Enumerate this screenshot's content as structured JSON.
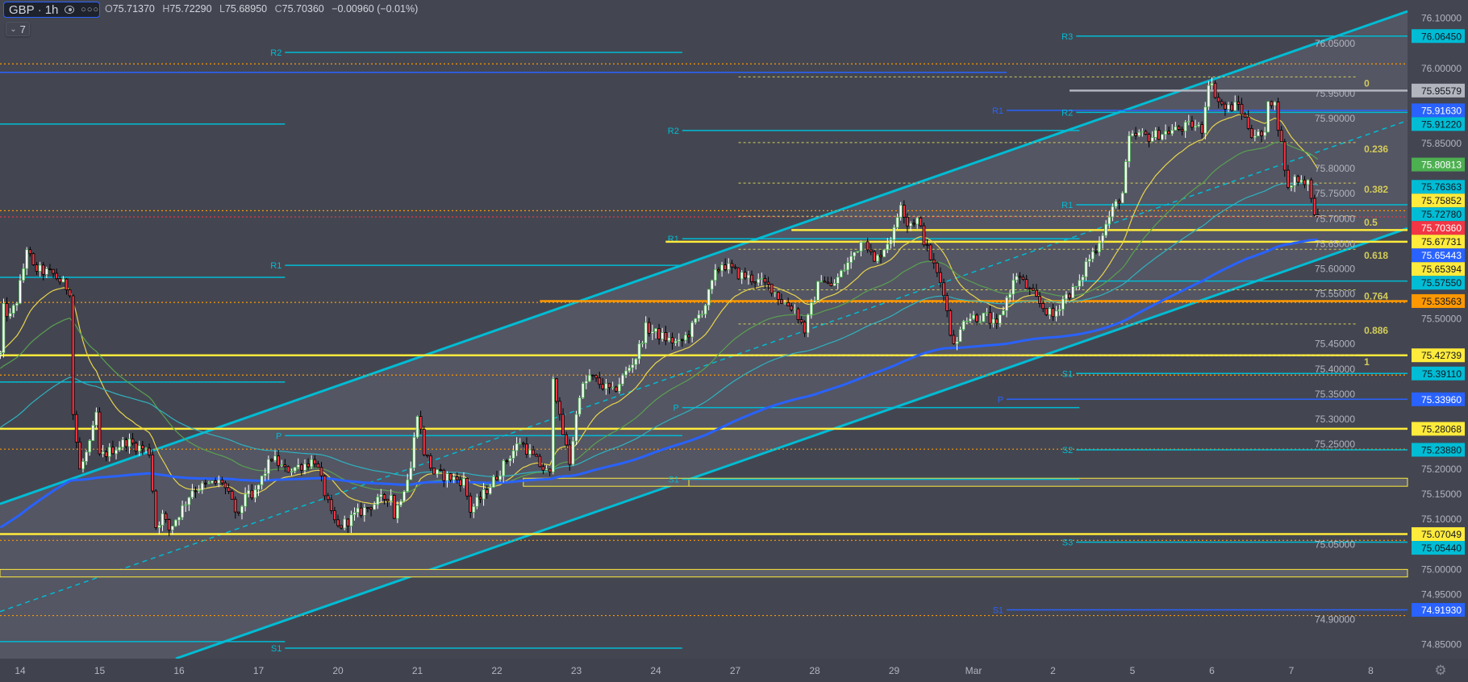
{
  "legend": {
    "symbol": "GBP",
    "separator": "·",
    "interval": "1h",
    "eye_icon": "eye-icon",
    "more_icon": "more-dots-icon",
    "ohlc": [
      {
        "key": "O",
        "value": "75.71370"
      },
      {
        "key": "H",
        "value": "75.72290"
      },
      {
        "key": "L",
        "value": "75.68950"
      },
      {
        "key": "C",
        "value": "75.70360"
      }
    ],
    "change": "−0.00960 (−0.01%)",
    "indicators_count": "7",
    "indicators_icon": "chevron-down-icon"
  },
  "settings_icon": "gear-icon",
  "colors": {
    "background": "#434651",
    "channel_fill": "#545663",
    "up_body": "#ffffff",
    "up_border": "#4caf50",
    "down_body": "#f23645",
    "down_border": "#000000",
    "cyan": "#00bcd4",
    "blue": "#2962ff",
    "yellow": "#ffeb3b",
    "orange": "#ff9800",
    "red": "#f23645",
    "grey": "#b2b5be",
    "fib": "#d4cc5a",
    "ma_fast": "#e8d44d",
    "ma_mid": "#5aa050",
    "ma_slow": "#2fb2c0",
    "ma_long": "#2962ff"
  },
  "chart_data": {
    "type": "candlestick",
    "symbol": "GBP",
    "interval": "1h",
    "x_ticks": [
      "14",
      "15",
      "16",
      "17",
      "20",
      "21",
      "22",
      "23",
      "24",
      "27",
      "28",
      "29",
      "Mar",
      "2",
      "5",
      "6",
      "7",
      "8"
    ],
    "y_ticks": [
      "76.10000",
      "76.05000",
      "76.00000",
      "75.95000",
      "75.90000",
      "75.85000",
      "75.80000",
      "75.75000",
      "75.70000",
      "75.65000",
      "75.60000",
      "75.55000",
      "75.50000",
      "75.45000",
      "75.40000",
      "75.35000",
      "75.30000",
      "75.25000",
      "75.20000",
      "75.15000",
      "75.10000",
      "75.05000",
      "75.00000",
      "74.95000",
      "74.90000",
      "74.85000"
    ],
    "ylim": [
      74.822,
      76.1365
    ],
    "grid": false,
    "last_price": 75.7036,
    "price_path": [
      [
        "13 18:00",
        75.429
      ],
      [
        "13 19:00",
        75.52
      ],
      [
        "13 21:00",
        75.504
      ],
      [
        "13 23:00",
        75.537
      ],
      [
        "14 01:00",
        75.601
      ],
      [
        "14 02:00",
        75.643
      ],
      [
        "14 04:00",
        75.601
      ],
      [
        "14 10:00",
        75.589
      ],
      [
        "14 15:00",
        75.557
      ],
      [
        "14 16:00",
        75.311
      ],
      [
        "14 18:00",
        75.198
      ],
      [
        "14 21:00",
        75.247
      ],
      [
        "14 23:00",
        75.311
      ],
      [
        "15 00:00",
        75.224
      ],
      [
        "15 08:00",
        75.256
      ],
      [
        "15 15:00",
        75.235
      ],
      [
        "15 17:00",
        75.086
      ],
      [
        "15 19:00",
        75.107
      ],
      [
        "15 21:00",
        75.079
      ],
      [
        "16 01:00",
        75.123
      ],
      [
        "16 04:00",
        75.16
      ],
      [
        "16 13:00",
        75.176
      ],
      [
        "16 18:00",
        75.102
      ],
      [
        "16 20:00",
        75.155
      ],
      [
        "16 22:00",
        75.139
      ],
      [
        "17 04:00",
        75.224
      ],
      [
        "17 08:00",
        75.198
      ],
      [
        "17 13:00",
        75.208
      ],
      [
        "17 17:00",
        75.219
      ],
      [
        "17 19:00",
        75.176
      ],
      [
        "17 22:00",
        75.107
      ],
      [
        "20 00:00",
        75.083
      ],
      [
        "20 06:00",
        75.112
      ],
      [
        "20 10:00",
        75.128
      ],
      [
        "20 16:00",
        75.15
      ],
      [
        "20 17:00",
        75.107
      ],
      [
        "20 22:00",
        75.203
      ],
      [
        "21 00:00",
        75.316
      ],
      [
        "21 02:00",
        75.235
      ],
      [
        "21 05:00",
        75.192
      ],
      [
        "21 14:00",
        75.176
      ],
      [
        "21 16:00",
        75.118
      ],
      [
        "21 20:00",
        75.15
      ],
      [
        "22 00:00",
        75.187
      ],
      [
        "22 03:00",
        75.219
      ],
      [
        "22 07:00",
        75.256
      ],
      [
        "22 13:00",
        75.208
      ],
      [
        "22 16:00",
        75.187
      ],
      [
        "22 17:00",
        75.391
      ],
      [
        "22 19:00",
        75.299
      ],
      [
        "22 22:00",
        75.214
      ],
      [
        "23 01:00",
        75.353
      ],
      [
        "23 04:00",
        75.385
      ],
      [
        "23 11:00",
        75.353
      ],
      [
        "23 18:00",
        75.424
      ],
      [
        "23 21:00",
        75.482
      ],
      [
        "24 03:00",
        75.461
      ],
      [
        "24 07:00",
        75.45
      ],
      [
        "24 10:00",
        75.472
      ],
      [
        "24 15:00",
        75.53
      ],
      [
        "24 18:00",
        75.589
      ],
      [
        "24 20:00",
        75.611
      ],
      [
        "27 01:00",
        75.589
      ],
      [
        "27 06:00",
        75.578
      ],
      [
        "27 11:00",
        75.562
      ],
      [
        "27 14:00",
        75.536
      ],
      [
        "27 18:00",
        75.52
      ],
      [
        "27 21:00",
        75.477
      ],
      [
        "28 00:00",
        75.546
      ],
      [
        "28 02:00",
        75.585
      ],
      [
        "28 05:00",
        75.562
      ],
      [
        "28 10:00",
        75.611
      ],
      [
        "28 15:00",
        75.665
      ],
      [
        "28 18:00",
        75.611
      ],
      [
        "29 00:00",
        75.675
      ],
      [
        "29 02:00",
        75.735
      ],
      [
        "29 04:00",
        75.691
      ],
      [
        "29 07:00",
        75.698
      ],
      [
        "29 10:00",
        75.638
      ],
      [
        "29 15:00",
        75.557
      ],
      [
        "29 17:00",
        75.472
      ],
      [
        "29 19:00",
        75.449
      ],
      [
        "29 21:00",
        75.504
      ],
      [
        "Mar 04:00",
        75.504
      ],
      [
        "Mar 07:00",
        75.482
      ],
      [
        "Mar 10:00",
        75.541
      ],
      [
        "Mar 13:00",
        75.589
      ],
      [
        "Mar 20:00",
        75.53
      ],
      [
        "2 00:00",
        75.504
      ],
      [
        "2 03:00",
        75.541
      ],
      [
        "2 08:00",
        75.568
      ],
      [
        "2 10:00",
        75.611
      ],
      [
        "2 13:00",
        75.643
      ],
      [
        "2 18:00",
        75.718
      ],
      [
        "2 21:00",
        75.751
      ],
      [
        "2 23:00",
        75.858
      ],
      [
        "5 02:00",
        75.868
      ],
      [
        "5 05:00",
        75.863
      ],
      [
        "5 09:00",
        75.871
      ],
      [
        "5 14:00",
        75.879
      ],
      [
        "5 18:00",
        75.887
      ],
      [
        "5 21:00",
        75.879
      ],
      [
        "5 23:00",
        75.976
      ],
      [
        "6 01:00",
        75.951
      ],
      [
        "6 02:00",
        75.935
      ],
      [
        "6 04:00",
        75.919
      ],
      [
        "6 08:00",
        75.927
      ],
      [
        "6 12:00",
        75.871
      ],
      [
        "6 16:00",
        75.863
      ],
      [
        "6 17:00",
        75.943
      ],
      [
        "6 19:00",
        75.927
      ],
      [
        "6 21:00",
        75.847
      ],
      [
        "6 23:00",
        75.758
      ],
      [
        "7 01:00",
        75.782
      ],
      [
        "7 05:00",
        75.774
      ],
      [
        "7 06:00",
        75.734
      ],
      [
        "7 08:00",
        75.7036
      ]
    ],
    "channel": {
      "upper": [
        [
          "13 18:00",
          75.131
        ],
        [
          "8 12:00",
          76.116
        ]
      ],
      "middle": [
        [
          "13 18:00",
          74.916
        ],
        [
          "8 12:00",
          75.898
        ]
      ],
      "lower": [
        [
          "15 23:00",
          74.822
        ],
        [
          "8 12:00",
          75.683
        ]
      ]
    },
    "fibonacci": {
      "from": "27 01:00",
      "to": "7 20:00",
      "levels": [
        {
          "label": "0",
          "price": 75.983
        },
        {
          "label": "0.236",
          "price": 75.852
        },
        {
          "label": "0.382",
          "price": 75.771
        },
        {
          "label": "0.5",
          "price": 75.705
        },
        {
          "label": "0.618",
          "price": 75.639
        },
        {
          "label": "0.764",
          "price": 75.558
        },
        {
          "label": "0.886",
          "price": 75.49
        },
        {
          "label": "1",
          "price": 75.427
        }
      ]
    },
    "levels": [
      {
        "price": 76.0645,
        "color": "cyan",
        "style": "solid",
        "from": "2 07:00",
        "to": "right",
        "label": "R3"
      },
      {
        "price": 76.009,
        "color": "orange",
        "style": "dotted",
        "from": "left",
        "to": "right",
        "label": ""
      },
      {
        "price": 75.992,
        "color": "blue",
        "style": "solid",
        "from": "left",
        "to": "Mar 10:00",
        "label": ""
      },
      {
        "price": 76.032,
        "color": "cyan",
        "style": "solid",
        "from": "17 08:00",
        "to": "24 08:00",
        "label": "R2"
      },
      {
        "price": 75.889,
        "color": "cyan",
        "style": "solid",
        "from": "left",
        "to": "17 08:00",
        "label": ""
      },
      {
        "price": 75.95579,
        "color": "grey",
        "style": "thick",
        "from": "2 05:00",
        "to": "right",
        "label": ""
      },
      {
        "price": 75.9163,
        "color": "blue",
        "style": "solid",
        "from": "Mar 10:00",
        "to": "right",
        "label": "R1"
      },
      {
        "price": 75.9122,
        "color": "cyan",
        "style": "solid",
        "from": "2 07:00",
        "to": "right",
        "label": "R2"
      },
      {
        "price": 75.876,
        "color": "cyan",
        "style": "solid",
        "from": "24 08:00",
        "to": "2 08:00",
        "label": "R2"
      },
      {
        "price": 75.7278,
        "color": "cyan",
        "style": "solid",
        "from": "2 07:00",
        "to": "right",
        "label": "R1"
      },
      {
        "price": 75.716,
        "color": "orange",
        "style": "dotted",
        "from": "left",
        "to": "right",
        "label": ""
      },
      {
        "price": 75.7036,
        "color": "red",
        "style": "dotted",
        "from": "left",
        "to": "right",
        "label": ""
      },
      {
        "price": 75.67731,
        "color": "yellow",
        "style": "thick",
        "from": "27 17:00",
        "to": "right",
        "label": ""
      },
      {
        "price": 75.66,
        "color": "cyan",
        "style": "solid",
        "from": "24 08:00",
        "to": "2 08:00",
        "label": "R1"
      },
      {
        "price": 75.65394,
        "color": "yellow",
        "style": "thick",
        "from": "24 03:00",
        "to": "right",
        "label": ""
      },
      {
        "price": 75.607,
        "color": "cyan",
        "style": "solid",
        "from": "17 08:00",
        "to": "24 08:00",
        "label": "R1"
      },
      {
        "price": 75.583,
        "color": "cyan",
        "style": "solid",
        "from": "left",
        "to": "17 08:00",
        "label": ""
      },
      {
        "price": 75.5755,
        "color": "cyan",
        "style": "solid",
        "from": "2 08:00",
        "to": "right",
        "label": ""
      },
      {
        "price": 75.53563,
        "color": "orange",
        "style": "thick",
        "from": "22 13:00",
        "to": "right",
        "label": ""
      },
      {
        "price": 75.533,
        "color": "orange",
        "style": "dotted",
        "from": "left",
        "to": "right",
        "label": ""
      },
      {
        "price": 75.42739,
        "color": "yellow",
        "style": "thick",
        "from": "left",
        "to": "right",
        "label": ""
      },
      {
        "price": 75.374,
        "color": "cyan",
        "style": "solid",
        "from": "left",
        "to": "17 08:00",
        "label": ""
      },
      {
        "price": 75.388,
        "color": "orange",
        "style": "dotted",
        "from": "left",
        "to": "right",
        "label": ""
      },
      {
        "price": 75.3911,
        "color": "cyan",
        "style": "solid",
        "from": "2 07:00",
        "to": "right",
        "label": "S1"
      },
      {
        "price": 75.3396,
        "color": "blue",
        "style": "solid",
        "from": "Mar 10:00",
        "to": "right",
        "label": "P"
      },
      {
        "price": 75.323,
        "color": "cyan",
        "style": "solid",
        "from": "24 08:00",
        "to": "2 08:00",
        "label": "P"
      },
      {
        "price": 75.28068,
        "color": "yellow",
        "style": "thick",
        "from": "left",
        "to": "right",
        "label": ""
      },
      {
        "price": 75.267,
        "color": "cyan",
        "style": "solid",
        "from": "17 08:00",
        "to": "24 08:00",
        "label": "P"
      },
      {
        "price": 75.24,
        "color": "orange",
        "style": "dotted",
        "from": "left",
        "to": "right",
        "label": ""
      },
      {
        "price": 75.2388,
        "color": "cyan",
        "style": "solid",
        "from": "2 07:00",
        "to": "right",
        "label": "S2"
      },
      {
        "price": 75.18,
        "color": "cyan",
        "style": "solid",
        "from": "24 08:00",
        "to": "2 08:00",
        "label": "S1"
      },
      {
        "price": 75.07049,
        "color": "yellow",
        "style": "thick",
        "from": "left",
        "to": "right",
        "label": ""
      },
      {
        "price": 75.058,
        "color": "orange",
        "style": "dotted",
        "from": "left",
        "to": "right",
        "label": ""
      },
      {
        "price": 75.0544,
        "color": "cyan",
        "style": "solid",
        "from": "2 07:00",
        "to": "right",
        "label": "S3"
      },
      {
        "price": 74.9193,
        "color": "blue",
        "style": "solid",
        "from": "Mar 10:00",
        "to": "right",
        "label": "S1"
      },
      {
        "price": 74.908,
        "color": "orange",
        "style": "dotted",
        "from": "left",
        "to": "right",
        "label": ""
      },
      {
        "price": 74.856,
        "color": "cyan",
        "style": "solid",
        "from": "left",
        "to": "17 08:00",
        "label": ""
      },
      {
        "price": 74.843,
        "color": "cyan",
        "style": "solid",
        "from": "17 08:00",
        "to": "24 08:00",
        "label": "S1"
      }
    ],
    "zones": [
      {
        "top": 75.182,
        "bottom": 75.166,
        "from": "22 08:00",
        "to": "right",
        "divider": "24 10:00"
      },
      {
        "top": 75.0,
        "bottom": 74.985,
        "from": "left",
        "to": "right"
      }
    ],
    "axis_labels": [
      {
        "text": "76.06450",
        "price": 76.0645,
        "bg": "#00bcd4",
        "fg": "#131722"
      },
      {
        "text": "75.95579",
        "price": 75.95579,
        "bg": "#b2b5be",
        "fg": "#131722"
      },
      {
        "text": "75.91630",
        "price": 75.9163,
        "bg": "#2962ff",
        "fg": "#ffffff"
      },
      {
        "text": "75.91220",
        "price": 75.9122,
        "bg": "#00bcd4",
        "fg": "#131722"
      },
      {
        "text": "75.80813",
        "price": 75.80813,
        "bg": "#4caf50",
        "fg": "#ffffff"
      },
      {
        "text": "75.76363",
        "price": 75.76363,
        "bg": "#00bcd4",
        "fg": "#131722"
      },
      {
        "text": "75.75852",
        "price": 75.75852,
        "bg": "#ffeb3b",
        "fg": "#131722"
      },
      {
        "text": "75.72780",
        "price": 75.7278,
        "bg": "#00bcd4",
        "fg": "#131722"
      },
      {
        "text": "75.70360",
        "price": 75.7036,
        "bg": "#f23645",
        "fg": "#ffffff"
      },
      {
        "text": "75.67731",
        "price": 75.67731,
        "bg": "#ffeb3b",
        "fg": "#131722"
      },
      {
        "text": "75.65443",
        "price": 75.65443,
        "bg": "#2962ff",
        "fg": "#ffffff"
      },
      {
        "text": "75.65394",
        "price": 75.65394,
        "bg": "#ffeb3b",
        "fg": "#131722"
      },
      {
        "text": "75.57550",
        "price": 75.5755,
        "bg": "#00bcd4",
        "fg": "#131722"
      },
      {
        "text": "75.53563",
        "price": 75.53563,
        "bg": "#ff9800",
        "fg": "#131722"
      },
      {
        "text": "75.42739",
        "price": 75.42739,
        "bg": "#ffeb3b",
        "fg": "#131722"
      },
      {
        "text": "75.39110",
        "price": 75.3911,
        "bg": "#00bcd4",
        "fg": "#131722"
      },
      {
        "text": "75.33960",
        "price": 75.3396,
        "bg": "#2962ff",
        "fg": "#ffffff"
      },
      {
        "text": "75.28068",
        "price": 75.28068,
        "bg": "#ffeb3b",
        "fg": "#131722"
      },
      {
        "text": "75.23880",
        "price": 75.2388,
        "bg": "#00bcd4",
        "fg": "#131722"
      },
      {
        "text": "75.07049",
        "price": 75.07049,
        "bg": "#ffeb3b",
        "fg": "#131722"
      },
      {
        "text": "75.05440",
        "price": 75.0544,
        "bg": "#00bcd4",
        "fg": "#131722"
      },
      {
        "text": "74.91930",
        "price": 74.9193,
        "bg": "#2962ff",
        "fg": "#ffffff"
      }
    ]
  }
}
